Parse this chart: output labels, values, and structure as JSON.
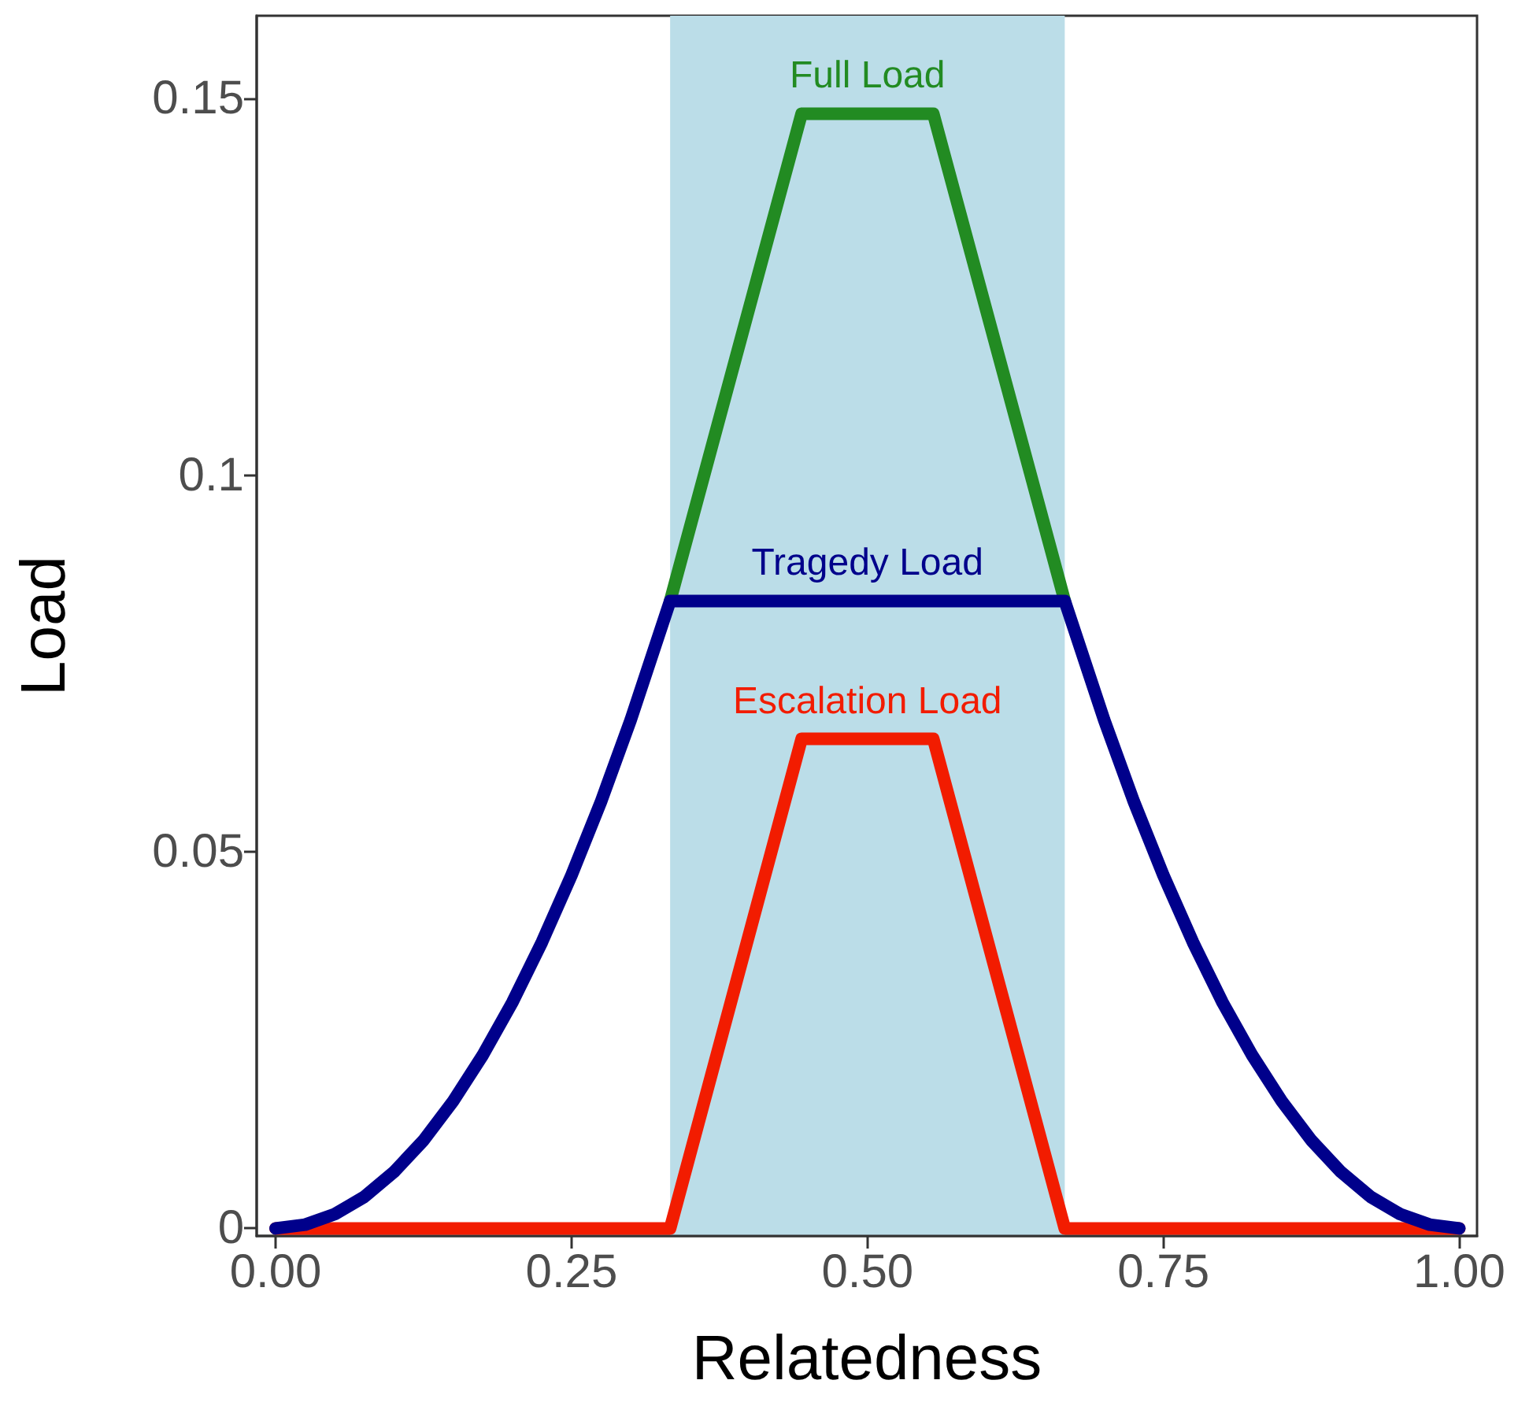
{
  "chart_data": {
    "type": "line",
    "xlabel": "Relatedness",
    "ylabel": "Load",
    "x": [
      0.3333,
      0.4444,
      0.5,
      0.5556,
      0.6667
    ],
    "series": [
      {
        "name": "Full Load",
        "color": "#228b22",
        "values": [
          0.0833,
          0.148,
          0.148,
          0.148,
          0.0833
        ]
      },
      {
        "name": "Escalation Load",
        "color": "#f21c00",
        "x": [
          0,
          0.3333,
          0.4444,
          0.5,
          0.5556,
          0.6667,
          1
        ],
        "values": [
          0,
          0,
          0.065,
          0.065,
          0.065,
          0,
          0
        ]
      },
      {
        "name": "Tragedy Load",
        "color": "#00008b",
        "x": [
          0,
          0.025,
          0.05,
          0.075,
          0.1,
          0.125,
          0.15,
          0.175,
          0.2,
          0.225,
          0.25,
          0.275,
          0.3,
          0.3333,
          0.5,
          0.6667,
          0.7,
          0.725,
          0.75,
          0.775,
          0.8,
          0.825,
          0.85,
          0.875,
          0.9,
          0.925,
          0.95,
          0.975,
          1
        ],
        "values": [
          0,
          0.0005,
          0.0019,
          0.0042,
          0.0075,
          0.0117,
          0.0169,
          0.023,
          0.03,
          0.038,
          0.0469,
          0.0567,
          0.0675,
          0.0833,
          0.0833,
          0.0833,
          0.0675,
          0.0567,
          0.0469,
          0.038,
          0.03,
          0.023,
          0.0169,
          0.0117,
          0.0075,
          0.0042,
          0.0019,
          0.0005,
          0
        ]
      }
    ],
    "bands": [
      {
        "axis": "x",
        "from": 0.3333,
        "to": 0.6667,
        "color": "#bbdde8"
      }
    ],
    "xlim": [
      -0.016,
      1.015
    ],
    "ylim": [
      -0.001,
      0.161
    ],
    "xticks": [
      {
        "value": 0,
        "label": "0.00"
      },
      {
        "value": 0.25,
        "label": "0.25"
      },
      {
        "value": 0.5,
        "label": "0.50"
      },
      {
        "value": 0.75,
        "label": "0.75"
      },
      {
        "value": 1,
        "label": "1.00"
      }
    ],
    "yticks": [
      0,
      0.05,
      0.1,
      0.15
    ],
    "legend": false,
    "marker": "none",
    "line_style": "solid"
  }
}
